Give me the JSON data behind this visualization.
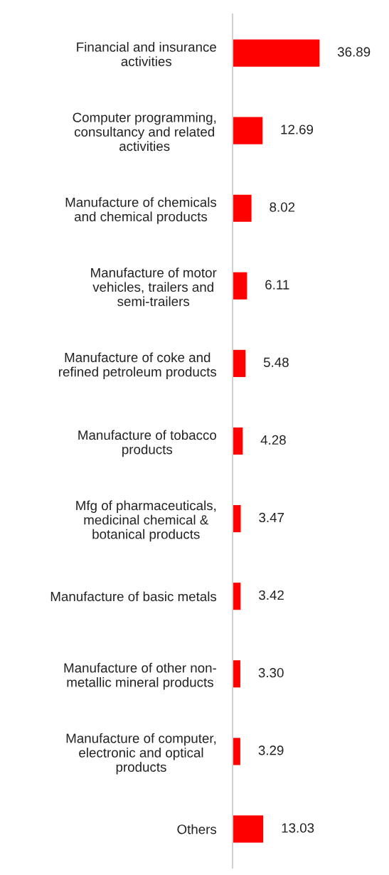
{
  "chart_data": {
    "type": "bar",
    "orientation": "horizontal",
    "value_labels": [
      "36.89",
      "12.69",
      "8.02",
      "6.11",
      "5.48",
      "4.28",
      "3.47",
      "3.42",
      "3.30",
      "3.29",
      "13.03"
    ],
    "grid": false,
    "legend": false,
    "color": "#ff0000",
    "categories": [
      "Financial and insurance activities",
      "Computer programming, consultancy and related activities",
      "Manufacture of chemicals and chemical products",
      "Manufacture of motor vehicles, trailers and semi-trailers",
      "Manufacture of coke and refined petroleum products",
      "Manufacture of tobacco products",
      "Mfg of pharmaceuticals, medicinal chemical & botanical products",
      "Manufacture of basic metals",
      "Manufacture of other non-metallic mineral products",
      "Manufacture of computer, electronic and optical products",
      "Others"
    ],
    "values": [
      36.89,
      12.69,
      8.02,
      6.11,
      5.48,
      4.28,
      3.47,
      3.42,
      3.3,
      3.29,
      13.03
    ]
  }
}
